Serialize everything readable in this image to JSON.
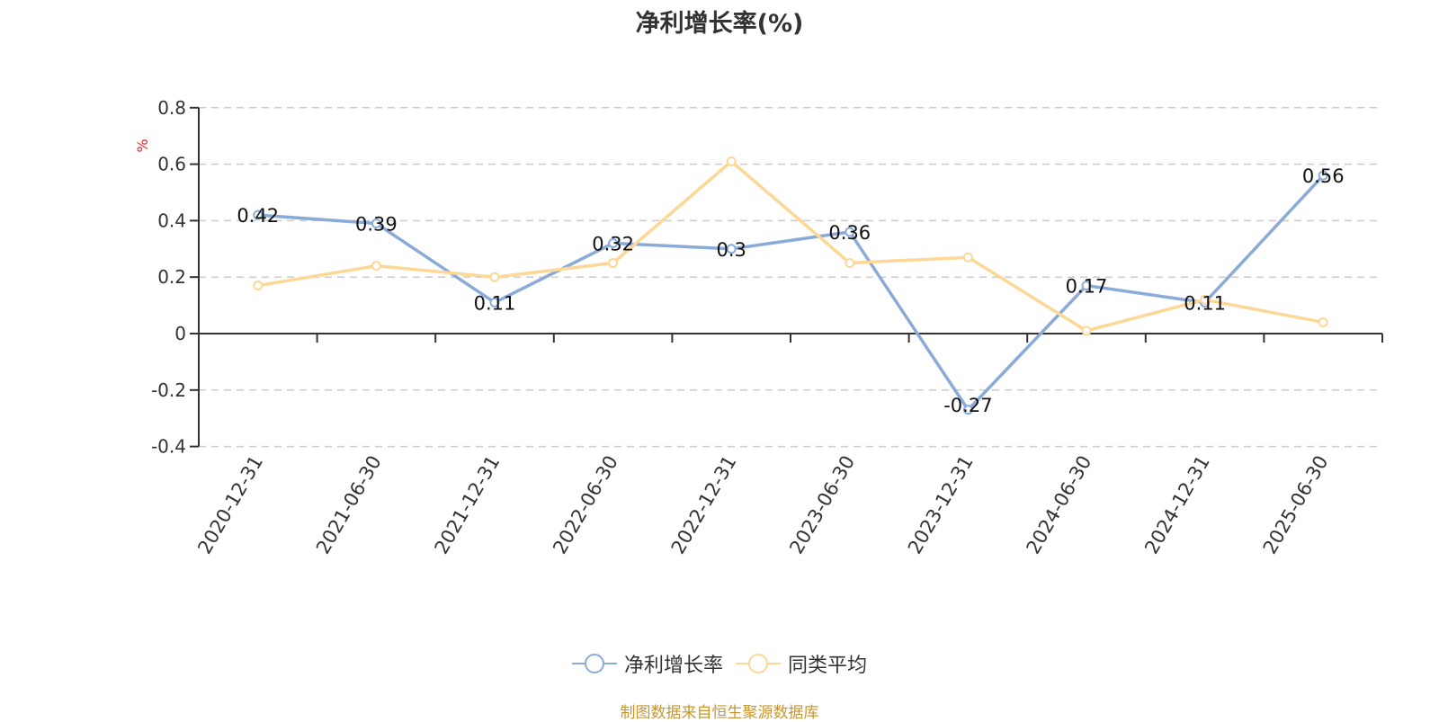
{
  "chart_data": {
    "type": "line",
    "title": "净利增长率(%)",
    "xlabel": "",
    "ylabel": "%",
    "ylim": [
      -0.4,
      0.8
    ],
    "yticks": [
      0.8,
      0.6,
      0.4,
      0.2,
      0,
      -0.2,
      -0.4
    ],
    "grid": true,
    "legend_position": "bottom",
    "categories": [
      "2020-12-31",
      "2021-06-30",
      "2021-12-31",
      "2022-06-30",
      "2022-12-31",
      "2023-06-30",
      "2023-12-31",
      "2024-06-30",
      "2024-12-31",
      "2025-06-30"
    ],
    "series": [
      {
        "name": "净利增长率",
        "color": "#8aaad8",
        "values": [
          0.42,
          0.39,
          0.11,
          0.32,
          0.3,
          0.36,
          -0.27,
          0.17,
          0.11,
          0.56
        ],
        "labels_shown": true
      },
      {
        "name": "同类平均",
        "color": "#fdd795",
        "values": [
          0.17,
          0.24,
          0.2,
          0.25,
          0.61,
          0.25,
          0.27,
          0.01,
          0.12,
          0.04
        ],
        "labels_shown": false
      }
    ]
  },
  "title": "净利增长率(%)",
  "axis_unit": "%",
  "legend": [
    {
      "label": "净利增长率",
      "color": "#8aaad8"
    },
    {
      "label": "同类平均",
      "color": "#fdd795"
    }
  ],
  "footer": "制图数据来自恒生聚源数据库"
}
